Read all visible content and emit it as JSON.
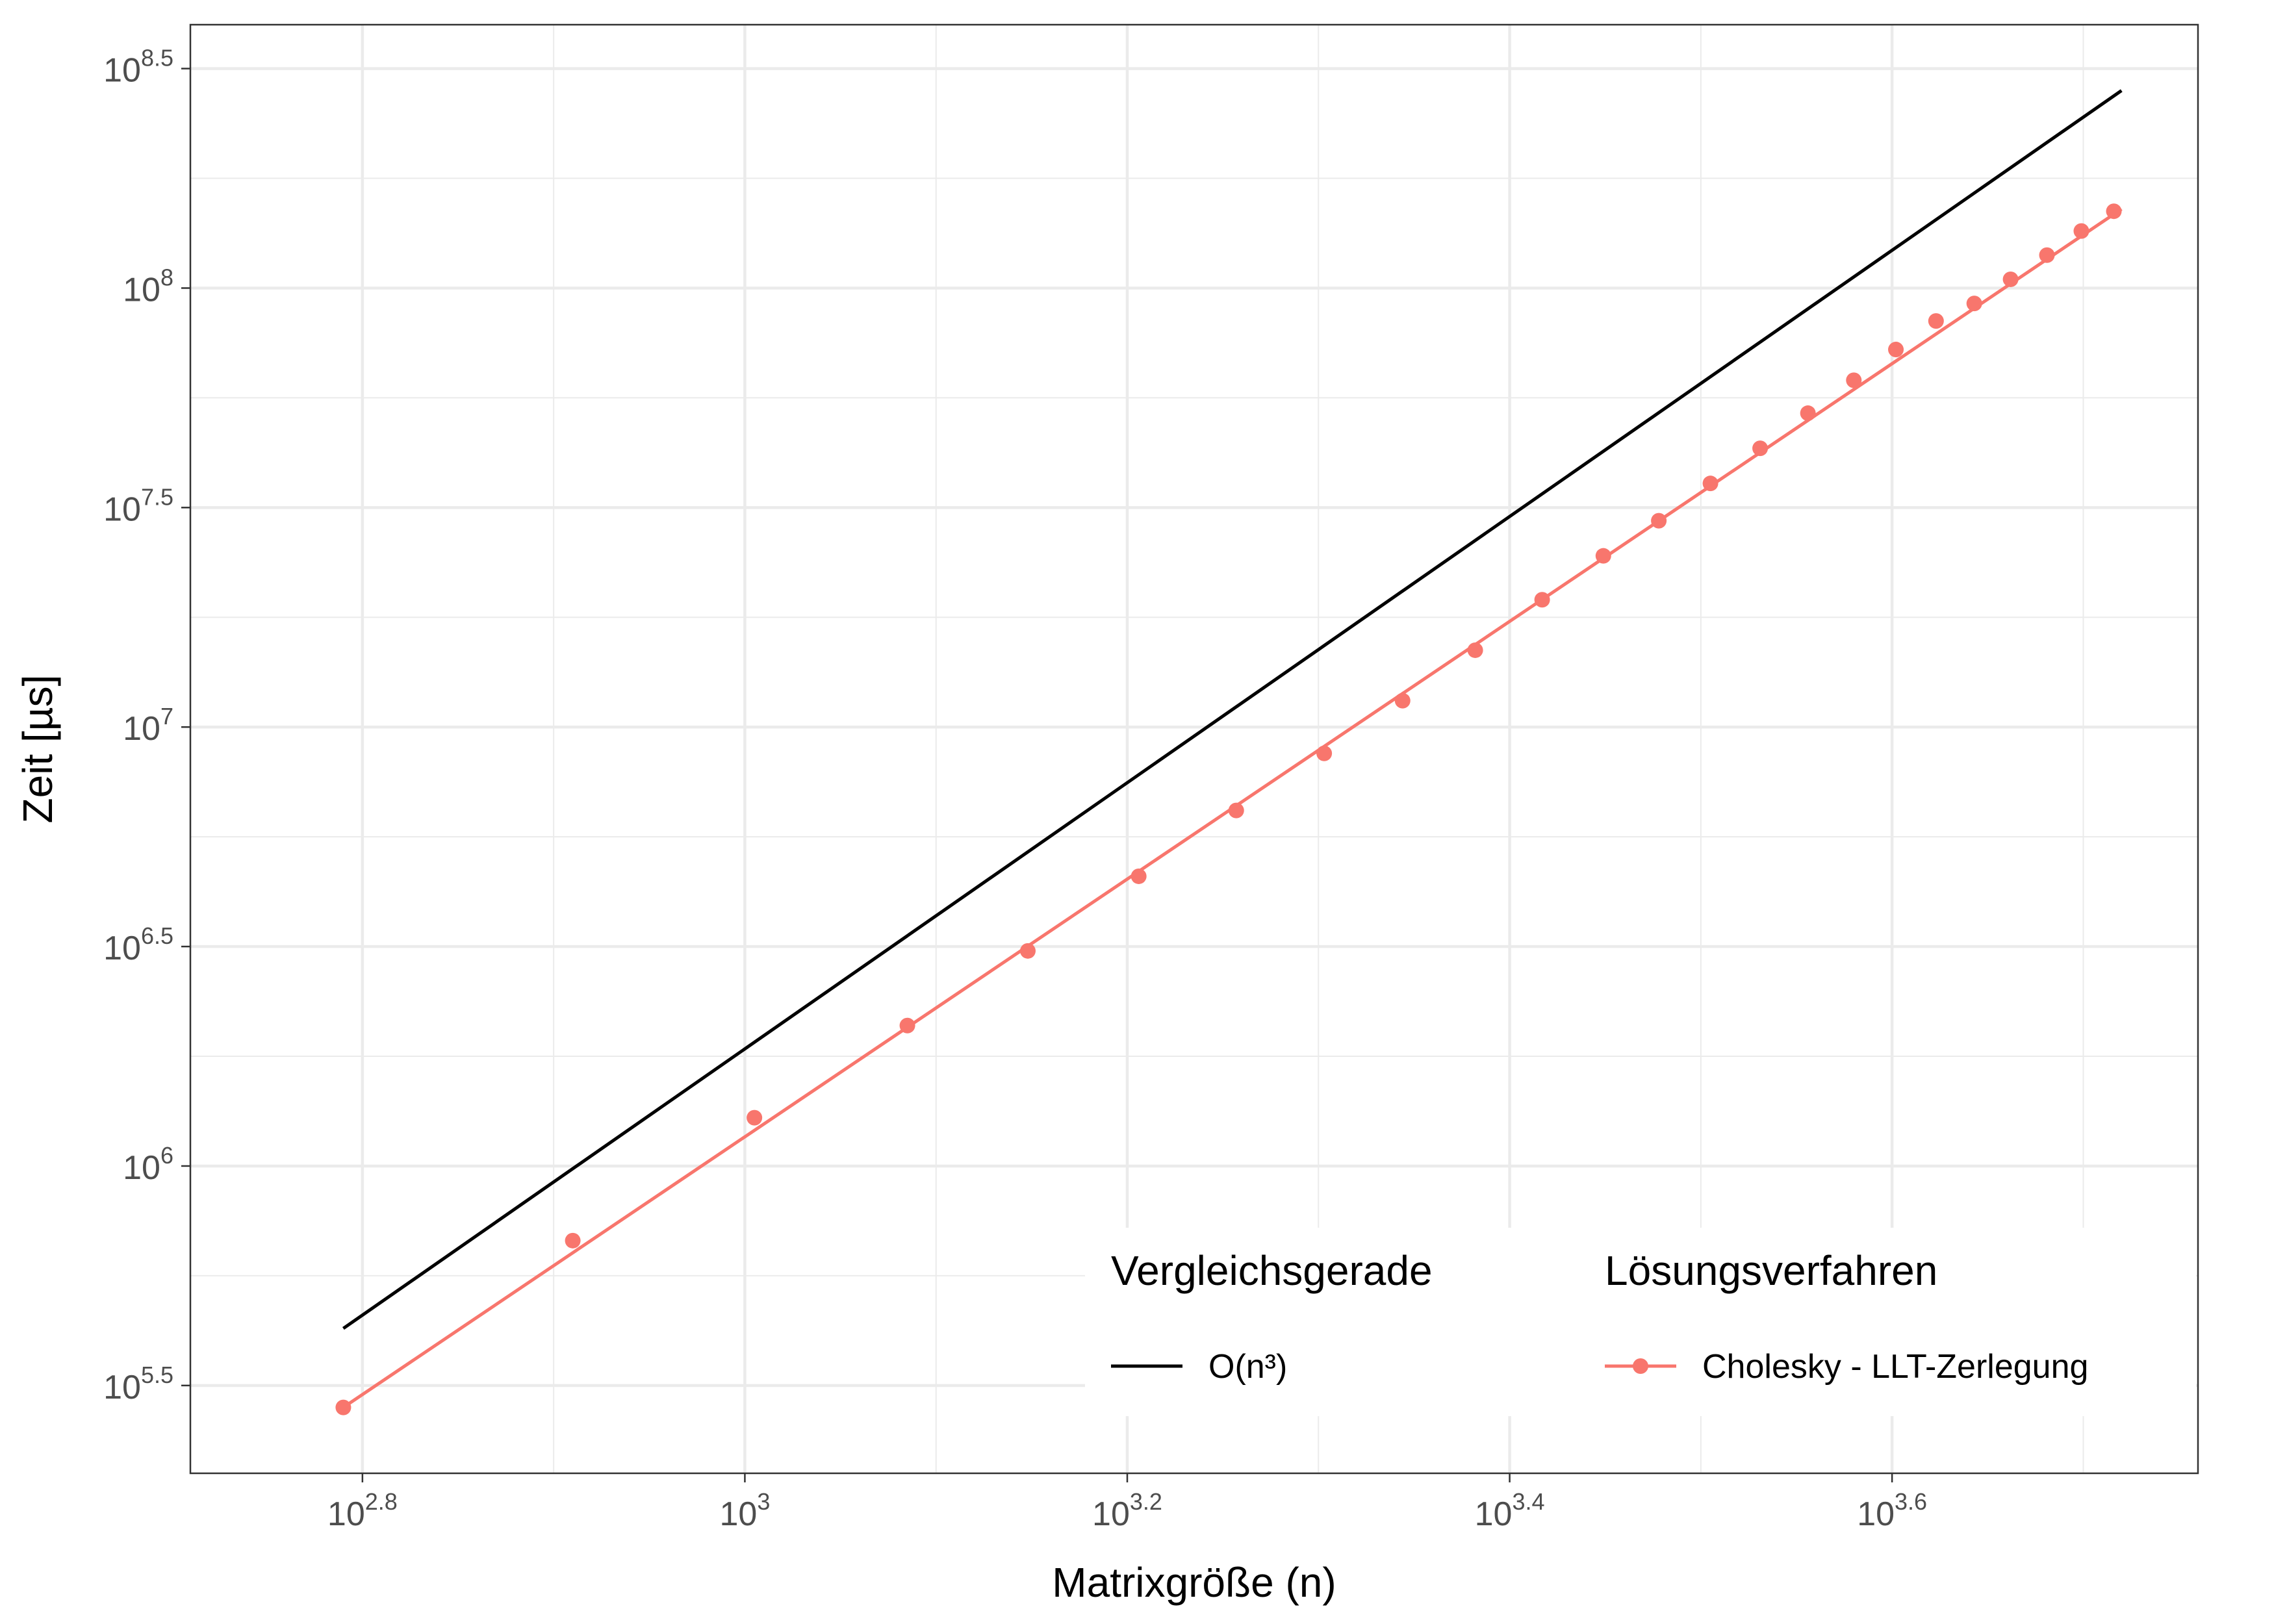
{
  "chart_data": {
    "type": "line",
    "xlabel": "Matrixgröße (n)",
    "ylabel": "Zeit [µs]",
    "x_scale": "log10",
    "y_scale": "log10",
    "xlim_log10": [
      2.71,
      3.76
    ],
    "ylim_log10": [
      5.3,
      8.6
    ],
    "grid": true,
    "x_ticks": [
      {
        "base": "10",
        "exp": "2.8",
        "value": 2.8
      },
      {
        "base": "10",
        "exp": "3",
        "value": 3.0
      },
      {
        "base": "10",
        "exp": "3.2",
        "value": 3.2
      },
      {
        "base": "10",
        "exp": "3.4",
        "value": 3.4
      },
      {
        "base": "10",
        "exp": "3.6",
        "value": 3.6
      }
    ],
    "y_ticks": [
      {
        "base": "10",
        "exp": "5.5",
        "value": 5.5
      },
      {
        "base": "10",
        "exp": "6",
        "value": 6.0
      },
      {
        "base": "10",
        "exp": "6.5",
        "value": 6.5
      },
      {
        "base": "10",
        "exp": "7",
        "value": 7.0
      },
      {
        "base": "10",
        "exp": "7.5",
        "value": 7.5
      },
      {
        "base": "10",
        "exp": "8",
        "value": 8.0
      },
      {
        "base": "10",
        "exp": "8.5",
        "value": 8.5
      }
    ],
    "legend": {
      "placement": "bottom-right",
      "groups": [
        {
          "title": "Vergleichsgerade",
          "entries": [
            {
              "label": "O(n³)",
              "color": "#000000",
              "marker": false
            }
          ]
        },
        {
          "title": "Lösungsverfahren",
          "entries": [
            {
              "label": "Cholesky - LLT-Zerlegung",
              "color": "#F8766D",
              "marker": true
            }
          ]
        }
      ]
    },
    "series": [
      {
        "name": "O(n³)",
        "color": "#000000",
        "kind": "line",
        "points_log10": [
          [
            2.79,
            5.63
          ],
          [
            3.72,
            8.45
          ]
        ]
      },
      {
        "name": "Cholesky - LLT-Zerlegung",
        "color": "#F8766D",
        "kind": "line+points",
        "fit_points_log10": [
          [
            2.79,
            5.45
          ],
          [
            3.72,
            8.18
          ]
        ],
        "points_log10": [
          [
            2.79,
            5.45
          ],
          [
            2.91,
            5.83
          ],
          [
            3.005,
            6.11
          ],
          [
            3.085,
            6.32
          ],
          [
            3.148,
            6.49
          ],
          [
            3.206,
            6.66
          ],
          [
            3.257,
            6.81
          ],
          [
            3.303,
            6.94
          ],
          [
            3.344,
            7.06
          ],
          [
            3.382,
            7.175
          ],
          [
            3.417,
            7.29
          ],
          [
            3.449,
            7.39
          ],
          [
            3.478,
            7.47
          ],
          [
            3.505,
            7.555
          ],
          [
            3.531,
            7.635
          ],
          [
            3.556,
            7.715
          ],
          [
            3.58,
            7.79
          ],
          [
            3.602,
            7.86
          ],
          [
            3.623,
            7.925
          ],
          [
            3.643,
            7.965
          ],
          [
            3.662,
            8.02
          ],
          [
            3.681,
            8.075
          ],
          [
            3.699,
            8.13
          ],
          [
            3.716,
            8.175
          ]
        ]
      }
    ]
  }
}
